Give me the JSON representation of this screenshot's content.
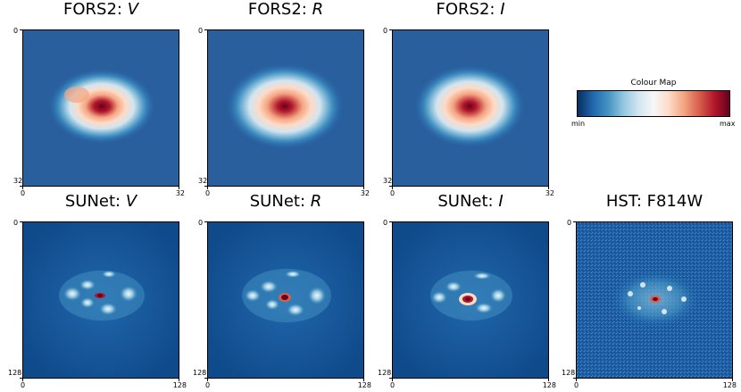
{
  "panels": [
    {
      "id": "fors2-v",
      "prefix": "FORS2: ",
      "band": "V",
      "italic": true,
      "axis_max": "32",
      "axis_min": "0",
      "style": "fors"
    },
    {
      "id": "fors2-r",
      "prefix": "FORS2: ",
      "band": "R",
      "italic": true,
      "axis_max": "32",
      "axis_min": "0",
      "style": "fors"
    },
    {
      "id": "fors2-i",
      "prefix": "FORS2: ",
      "band": "I",
      "italic": true,
      "axis_max": "32",
      "axis_min": "0",
      "style": "fors"
    },
    {
      "id": "sunet-v",
      "prefix": "SUNet: ",
      "band": "V",
      "italic": true,
      "axis_max": "128",
      "axis_min": "0",
      "style": "sunet"
    },
    {
      "id": "sunet-r",
      "prefix": "SUNet: ",
      "band": "R",
      "italic": true,
      "axis_max": "128",
      "axis_min": "0",
      "style": "sunet"
    },
    {
      "id": "sunet-i",
      "prefix": "SUNet: ",
      "band": "I",
      "italic": true,
      "axis_max": "128",
      "axis_min": "0",
      "style": "sunet"
    },
    {
      "id": "hst-f814w",
      "prefix": "HST: F814W",
      "band": "",
      "italic": false,
      "axis_max": "128",
      "axis_min": "0",
      "style": "hst"
    }
  ],
  "colorbar": {
    "title": "Colour Map",
    "min_label": "min",
    "max_label": "max",
    "colors": [
      "#053061",
      "#2166ac",
      "#4393c3",
      "#92c5de",
      "#d1e5f0",
      "#f7f7f7",
      "#fddbc7",
      "#f4a582",
      "#d6604d",
      "#b2182b",
      "#67001f"
    ]
  }
}
